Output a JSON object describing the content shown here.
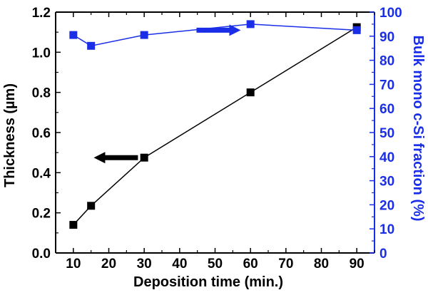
{
  "chart_data": {
    "type": "line",
    "xlabel": "Deposition time (min.)",
    "ylabel_left": "Thickness (µm)",
    "ylabel_right": "Bulk mono c-Si fraction (%)",
    "xlim": [
      5,
      95
    ],
    "ylim_left": [
      0.0,
      1.2
    ],
    "ylim_right": [
      0,
      100
    ],
    "x_ticks": [
      "10",
      "20",
      "30",
      "40",
      "50",
      "60",
      "70",
      "80",
      "90"
    ],
    "y_left_ticks": [
      "0.0",
      "0.2",
      "0.4",
      "0.6",
      "0.8",
      "1.0",
      "1.2"
    ],
    "y_right_ticks": [
      "0",
      "10",
      "20",
      "30",
      "40",
      "50",
      "60",
      "70",
      "80",
      "90",
      "100"
    ],
    "grid": false,
    "legend": "none",
    "series": [
      {
        "axis": "left",
        "color": "#000000",
        "marker": "square",
        "x": [
          10,
          15,
          30,
          60,
          90
        ],
        "values": [
          0.14,
          0.235,
          0.475,
          0.8,
          1.125
        ]
      },
      {
        "axis": "right",
        "color": "#1a2ee8",
        "marker": "square",
        "x": [
          10,
          15,
          30,
          60,
          90
        ],
        "values": [
          90.5,
          86,
          90.5,
          95,
          92.5
        ]
      }
    ],
    "annotations": [
      {
        "type": "arrow",
        "direction": "left",
        "color": "#000000",
        "at": {
          "x": 22,
          "y_left": 0.475
        }
      },
      {
        "type": "arrow",
        "direction": "right",
        "color": "#1a2ee8",
        "at": {
          "x": 51,
          "y_right": 92.5
        }
      }
    ]
  }
}
